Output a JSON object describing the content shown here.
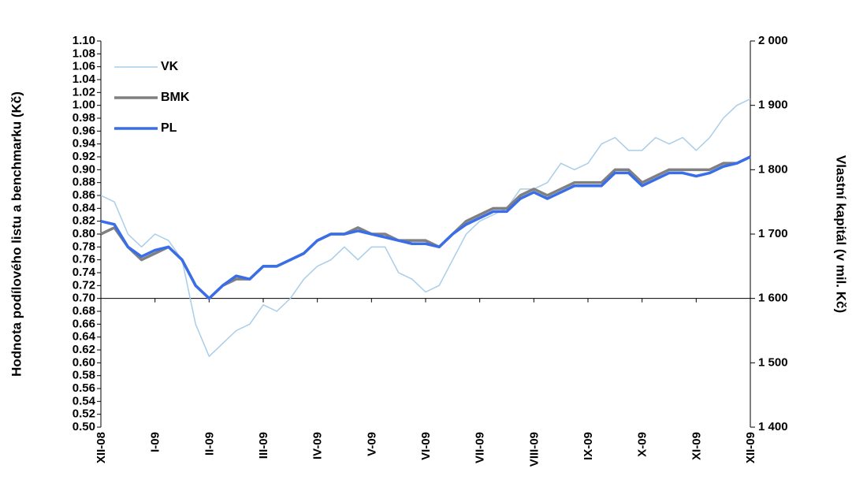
{
  "chart_data": {
    "type": "line",
    "y_label": "Hodnota podílového listu a benchmarku (Kč)",
    "y2_label": "Vlastní kapitál (v mil. Kč)",
    "categories": [
      "XII-08",
      null,
      null,
      null,
      "I-09",
      null,
      null,
      null,
      "II-09",
      null,
      null,
      null,
      "III-09",
      null,
      null,
      null,
      "IV-09",
      null,
      null,
      null,
      "V-09",
      null,
      null,
      null,
      "VI-09",
      null,
      null,
      null,
      "VII-09",
      null,
      null,
      null,
      "VIII-09",
      null,
      null,
      null,
      "IX-09",
      null,
      null,
      null,
      "X-09",
      null,
      null,
      null,
      "XI-09",
      null,
      null,
      null,
      "XII-09"
    ],
    "series": [
      {
        "name": "VK",
        "color": "#a9cde8",
        "axis": "y2",
        "values": [
          1760,
          1750,
          1700,
          1680,
          1700,
          1690,
          1660,
          1560,
          1510,
          1530,
          1550,
          1560,
          1590,
          1580,
          1600,
          1630,
          1650,
          1660,
          1680,
          1660,
          1680,
          1680,
          1640,
          1630,
          1610,
          1620,
          1660,
          1700,
          1720,
          1730,
          1740,
          1770,
          1770,
          1780,
          1810,
          1800,
          1810,
          1840,
          1850,
          1830,
          1830,
          1850,
          1840,
          1850,
          1830,
          1850,
          1880,
          1900,
          1910
        ]
      },
      {
        "name": "BMK",
        "color": "#808080",
        "values": [
          0.8,
          0.81,
          0.78,
          0.76,
          0.77,
          0.78,
          0.76,
          0.72,
          0.7,
          0.72,
          0.73,
          0.73,
          0.75,
          0.75,
          0.76,
          0.77,
          0.79,
          0.8,
          0.8,
          0.81,
          0.8,
          0.8,
          0.79,
          0.79,
          0.79,
          0.78,
          0.8,
          0.82,
          0.83,
          0.84,
          0.84,
          0.86,
          0.87,
          0.86,
          0.87,
          0.88,
          0.88,
          0.88,
          0.9,
          0.9,
          0.88,
          0.89,
          0.9,
          0.9,
          0.9,
          0.9,
          0.91,
          0.91,
          0.92
        ]
      },
      {
        "name": "PL",
        "color": "#3a6ee8",
        "values": [
          0.82,
          0.815,
          0.78,
          0.765,
          0.775,
          0.78,
          0.76,
          0.72,
          0.7,
          0.72,
          0.735,
          0.73,
          0.75,
          0.75,
          0.76,
          0.77,
          0.79,
          0.8,
          0.8,
          0.805,
          0.8,
          0.795,
          0.79,
          0.785,
          0.785,
          0.78,
          0.8,
          0.815,
          0.825,
          0.835,
          0.835,
          0.855,
          0.865,
          0.855,
          0.865,
          0.875,
          0.875,
          0.875,
          0.895,
          0.895,
          0.875,
          0.885,
          0.895,
          0.895,
          0.89,
          0.895,
          0.905,
          0.91,
          0.92
        ]
      }
    ],
    "ylim": [
      0.5,
      1.1
    ],
    "yticks": [
      {
        "value": 0.5,
        "label": "0.50"
      },
      {
        "value": 0.52,
        "label": "0.52"
      },
      {
        "value": 0.54,
        "label": "0.54"
      },
      {
        "value": 0.56,
        "label": "0.56"
      },
      {
        "value": 0.58,
        "label": "0.58"
      },
      {
        "value": 0.6,
        "label": "0.60"
      },
      {
        "value": 0.62,
        "label": "0.62"
      },
      {
        "value": 0.64,
        "label": "0.64"
      },
      {
        "value": 0.66,
        "label": "0.66"
      },
      {
        "value": 0.68,
        "label": "0.68"
      },
      {
        "value": 0.7,
        "label": "0.70"
      },
      {
        "value": 0.72,
        "label": "0.72"
      },
      {
        "value": 0.74,
        "label": "0.74"
      },
      {
        "value": 0.76,
        "label": "0.76"
      },
      {
        "value": 0.78,
        "label": "0.78"
      },
      {
        "value": 0.8,
        "label": "0.80"
      },
      {
        "value": 0.82,
        "label": "0.82"
      },
      {
        "value": 0.84,
        "label": "0.84"
      },
      {
        "value": 0.86,
        "label": "0.86"
      },
      {
        "value": 0.88,
        "label": "0.88"
      },
      {
        "value": 0.9,
        "label": "0.90"
      },
      {
        "value": 0.92,
        "label": "0.92"
      },
      {
        "value": 0.94,
        "label": "0.94"
      },
      {
        "value": 0.96,
        "label": "0.96"
      },
      {
        "value": 0.98,
        "label": "0.98"
      },
      {
        "value": 1.0,
        "label": "1.00"
      },
      {
        "value": 1.02,
        "label": "1.02"
      },
      {
        "value": 1.04,
        "label": "1.04"
      },
      {
        "value": 1.06,
        "label": "1.06"
      },
      {
        "value": 1.08,
        "label": "1.08"
      },
      {
        "value": 1.1,
        "label": "1.10"
      }
    ],
    "y2lim": [
      1400,
      2000
    ],
    "y2ticks": [
      {
        "value": 1400,
        "label": "1 400"
      },
      {
        "value": 1500,
        "label": "1 500"
      },
      {
        "value": 1600,
        "label": "1 600"
      },
      {
        "value": 1700,
        "label": "1 700"
      },
      {
        "value": 1800,
        "label": "1 800"
      },
      {
        "value": 1900,
        "label": "1 900"
      },
      {
        "value": 2000,
        "label": "2 000"
      }
    ],
    "x_axis_crosses": 0.7,
    "legend": "upper left"
  }
}
